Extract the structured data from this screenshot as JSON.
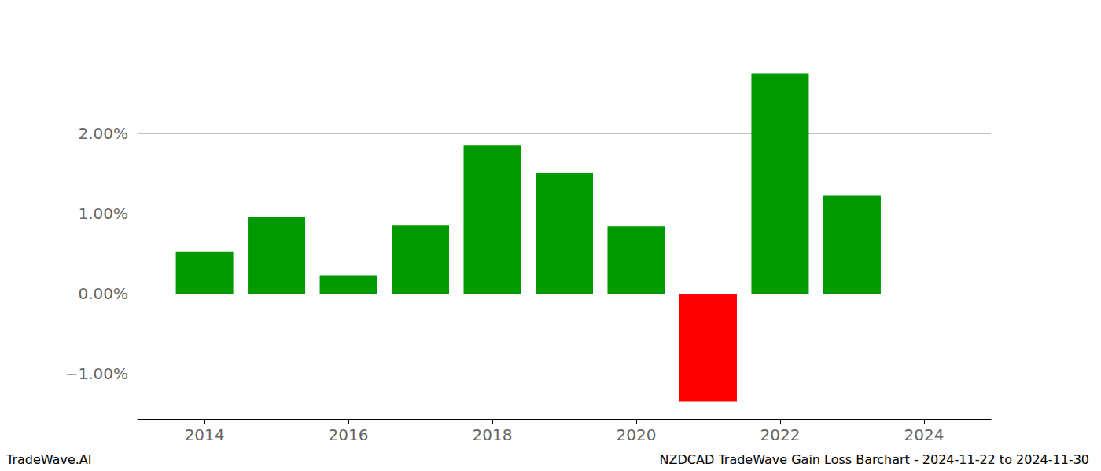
{
  "chart_data": {
    "type": "bar",
    "title": "NZDCAD TradeWave Gain Loss Barchart - 2024-11-22 to 2024-11-30",
    "annotations": [
      "TradeWave.AI"
    ],
    "x": [
      2014,
      2015,
      2016,
      2017,
      2018,
      2019,
      2020,
      2021,
      2022,
      2023
    ],
    "values": [
      0.52,
      0.95,
      0.23,
      0.85,
      1.85,
      1.5,
      0.84,
      -1.35,
      2.75,
      1.22
    ],
    "colors": [
      "#009900",
      "#009900",
      "#009900",
      "#009900",
      "#009900",
      "#009900",
      "#009900",
      "#ff0000",
      "#009900",
      "#009900"
    ],
    "xlim": [
      2013.07,
      2024.93
    ],
    "xticks": [
      2014,
      2016,
      2018,
      2020,
      2022,
      2024
    ],
    "ylim": [
      -1.57,
      2.96
    ],
    "yticks": [
      {
        "value": -1,
        "label": "−1.00%"
      },
      {
        "value": 0,
        "label": "0.00%"
      },
      {
        "value": 1,
        "label": "1.00%"
      },
      {
        "value": 2,
        "label": "2.00%"
      }
    ],
    "grid": true
  }
}
